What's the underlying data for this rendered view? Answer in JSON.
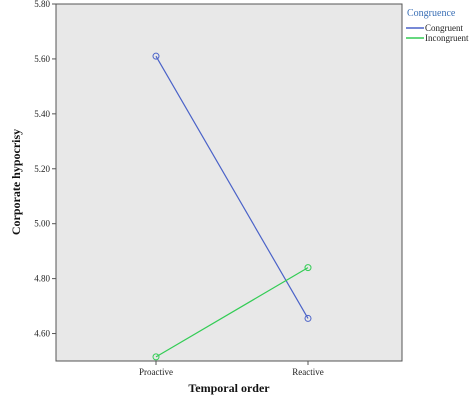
{
  "chart_data": {
    "type": "line",
    "xlabel": "Temporal order",
    "ylabel": "Corporate hypocrisy",
    "categories": [
      "Proactive",
      "Reactive"
    ],
    "ylim": [
      4.5,
      5.8
    ],
    "yticks": [
      "4.60",
      "4.80",
      "5.00",
      "5.20",
      "5.40",
      "5.60",
      "5.80"
    ],
    "grid": false,
    "legend": {
      "title": "Congruence",
      "placement": "right"
    },
    "series": [
      {
        "name": "Congruent",
        "values": [
          5.61,
          4.655
        ],
        "color": "#4a62c8"
      },
      {
        "name": "Incongruent",
        "values": [
          4.515,
          4.84
        ],
        "color": "#33cc55"
      }
    ],
    "plot_background": "#e8e8e8",
    "legend_title_color": "#3a6fb5"
  }
}
